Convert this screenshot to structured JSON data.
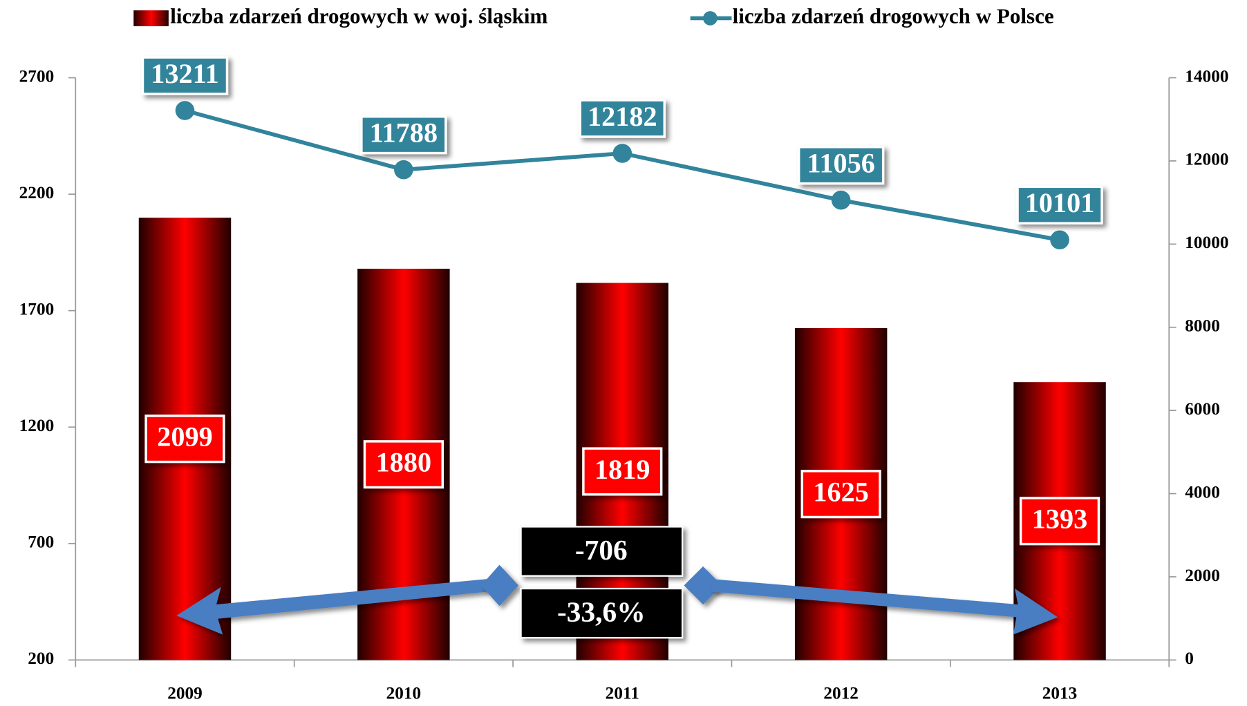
{
  "chart_data": {
    "type": "bar_line",
    "categories": [
      "2009",
      "2010",
      "2011",
      "2012",
      "2013"
    ],
    "series": [
      {
        "name": "liczba zdarzeń drogowych w woj. śląskim",
        "color": "#ff0000",
        "type": "bar",
        "values": [
          2099,
          1880,
          1819,
          1625,
          1393
        ]
      },
      {
        "name": "liczba zdarzeń drogowych w Polsce",
        "color": "#31849b",
        "type": "line",
        "axis": "y2",
        "values": [
          13211,
          11788,
          12182,
          11056,
          10101
        ]
      }
    ],
    "ylim": [
      200,
      2700
    ],
    "yticks": [
      200,
      700,
      1200,
      1700,
      2200,
      2700
    ],
    "y2lim": [
      0,
      14000
    ],
    "y2ticks": [
      0,
      2000,
      4000,
      6000,
      8000,
      10000,
      12000,
      14000
    ],
    "annotations": [
      "-706",
      "-33,6%"
    ],
    "legend": "top"
  }
}
